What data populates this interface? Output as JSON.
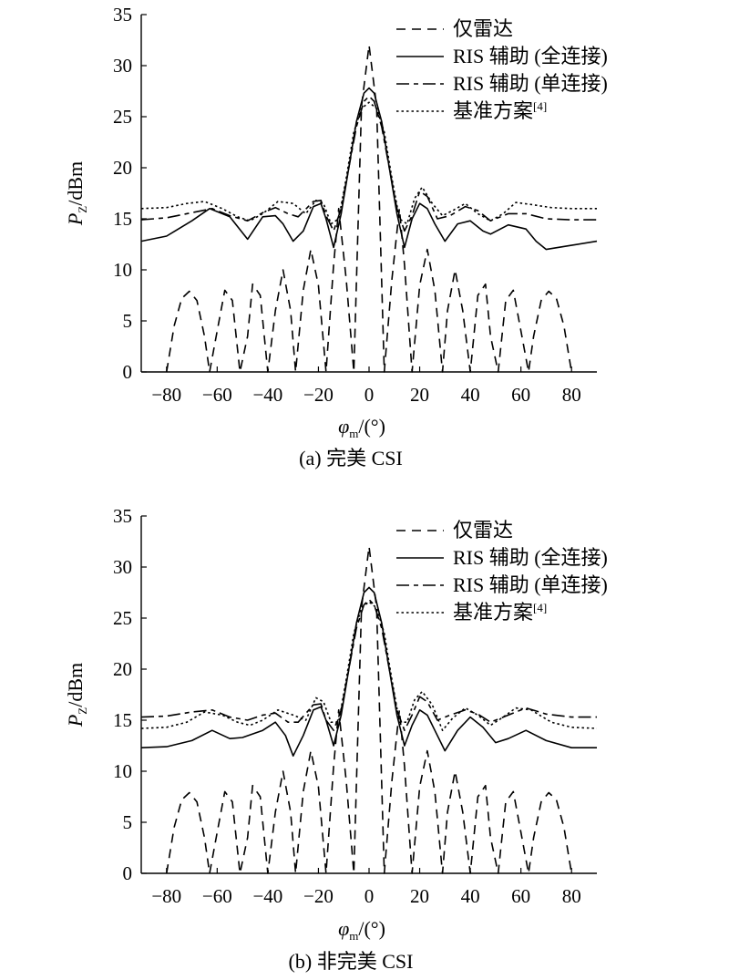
{
  "chart_data": [
    {
      "type": "line",
      "caption": "(a) 完美 CSI",
      "xlabel_main": "φ",
      "xlabel_sub": "m",
      "xlabel_tail": "/(°)",
      "ylabel_main": "P",
      "ylabel_sub": "Z",
      "ylabel_tail": "/dBm",
      "xlim": [
        -90,
        90
      ],
      "ylim": [
        0,
        35
      ],
      "xticks": [
        -80,
        -60,
        -40,
        -20,
        0,
        20,
        40,
        60,
        80
      ],
      "yticks": [
        0,
        5,
        10,
        15,
        20,
        25,
        30,
        35
      ],
      "grid": false,
      "legend_position": "top-right",
      "series": [
        {
          "name": "仅雷达",
          "style": "dashed",
          "x": [
            -80,
            -77,
            -74,
            -71,
            -68,
            -65,
            -63,
            -60,
            -57,
            -54,
            -51,
            -48,
            -46,
            -43,
            -40,
            -37,
            -34,
            -31,
            -29,
            -26,
            -23,
            -20,
            -17,
            -14,
            -12,
            -9,
            -6,
            -3,
            0,
            3,
            6,
            9,
            12,
            14,
            17,
            20,
            23,
            26,
            29,
            31,
            34,
            37,
            40,
            43,
            46,
            48,
            51,
            54,
            57,
            60,
            63,
            65,
            68,
            71,
            74,
            77,
            80
          ],
          "y": [
            0,
            4.5,
            7.2,
            7.9,
            7.0,
            3.5,
            0,
            4.0,
            8.0,
            7.0,
            0,
            3.5,
            8.6,
            7.5,
            0,
            6.0,
            10.0,
            6.0,
            0,
            8.0,
            12.0,
            8.5,
            0,
            10.5,
            16.0,
            9.0,
            0,
            26.0,
            32.0,
            26.0,
            0,
            9.0,
            16.0,
            10.5,
            0,
            8.5,
            12.0,
            8.0,
            0,
            6.0,
            10.0,
            6.0,
            0,
            7.5,
            8.6,
            3.5,
            0,
            7.0,
            8.0,
            4.0,
            0,
            3.5,
            7.0,
            7.9,
            7.2,
            4.5,
            0
          ]
        },
        {
          "name": "RIS 辅助 (全连接)",
          "style": "solid",
          "x": [
            -90,
            -80,
            -70,
            -63,
            -55,
            -48,
            -42,
            -37,
            -34,
            -30,
            -26,
            -22,
            -19,
            -17,
            -14,
            -11,
            -8,
            -5,
            -2,
            0,
            2,
            5,
            8,
            11,
            14,
            17,
            20,
            23,
            26,
            30,
            35,
            40,
            45,
            48,
            55,
            62,
            66,
            70,
            80,
            90
          ],
          "y": [
            12.8,
            13.3,
            14.8,
            16.0,
            15.2,
            13.0,
            15.2,
            15.3,
            14.5,
            12.8,
            13.8,
            16.2,
            16.5,
            15.0,
            12.2,
            15.5,
            20.0,
            24.5,
            27.3,
            27.8,
            27.3,
            24.5,
            20.0,
            15.5,
            12.2,
            15.0,
            16.5,
            16.0,
            14.5,
            12.8,
            14.5,
            14.8,
            13.8,
            13.5,
            14.4,
            14.0,
            12.8,
            12.0,
            12.4,
            12.8
          ]
        },
        {
          "name": "RIS 辅助 (单连接)",
          "style": "dashdot",
          "x": [
            -90,
            -80,
            -70,
            -62,
            -55,
            -48,
            -42,
            -37,
            -32,
            -28,
            -22,
            -19,
            -17,
            -14,
            -11,
            -8,
            -5,
            -2,
            0,
            2,
            5,
            8,
            11,
            14,
            17,
            20,
            23,
            27,
            32,
            38,
            43,
            48,
            55,
            62,
            70,
            80,
            90
          ],
          "y": [
            14.9,
            15.1,
            15.6,
            16.0,
            15.3,
            14.8,
            15.6,
            16.1,
            15.5,
            15.2,
            16.7,
            16.8,
            15.3,
            13.8,
            16.0,
            20.0,
            24.0,
            26.5,
            27.0,
            26.5,
            24.0,
            20.0,
            16.0,
            13.8,
            15.3,
            17.7,
            17.2,
            15.0,
            15.3,
            16.2,
            15.8,
            14.8,
            15.5,
            15.5,
            15.0,
            14.9,
            14.9
          ]
        },
        {
          "name": "基准方案[4]",
          "style": "dotted",
          "x": [
            -90,
            -80,
            -72,
            -65,
            -58,
            -52,
            -47,
            -42,
            -36,
            -30,
            -25,
            -21,
            -18,
            -15,
            -12,
            -9,
            -6,
            -3,
            0,
            3,
            6,
            9,
            12,
            15,
            18,
            21,
            25,
            29,
            33,
            38,
            43,
            48,
            53,
            58,
            64,
            72,
            80,
            90
          ],
          "y": [
            16.0,
            16.1,
            16.5,
            16.7,
            16.0,
            15.2,
            14.8,
            15.5,
            16.7,
            16.5,
            15.5,
            16.8,
            16.5,
            14.5,
            15.0,
            19.0,
            23.5,
            25.8,
            26.4,
            25.8,
            23.5,
            19.0,
            15.0,
            14.5,
            17.0,
            18.1,
            16.5,
            15.3,
            15.8,
            16.5,
            15.5,
            14.8,
            15.5,
            16.6,
            16.4,
            16.1,
            16.0,
            16.0
          ]
        }
      ]
    },
    {
      "type": "line",
      "caption": "(b) 非完美 CSI",
      "xlabel_main": "φ",
      "xlabel_sub": "m",
      "xlabel_tail": "/(°)",
      "ylabel_main": "P",
      "ylabel_sub": "Z",
      "ylabel_tail": "/dBm",
      "xlim": [
        -90,
        90
      ],
      "ylim": [
        0,
        35
      ],
      "xticks": [
        -80,
        -60,
        -40,
        -20,
        0,
        20,
        40,
        60,
        80
      ],
      "yticks": [
        0,
        5,
        10,
        15,
        20,
        25,
        30,
        35
      ],
      "grid": false,
      "legend_position": "top-right",
      "series": [
        {
          "name": "仅雷达",
          "style": "dashed",
          "x": [
            -80,
            -77,
            -74,
            -71,
            -68,
            -65,
            -63,
            -60,
            -57,
            -54,
            -51,
            -48,
            -46,
            -43,
            -40,
            -37,
            -34,
            -31,
            -29,
            -26,
            -23,
            -20,
            -17,
            -14,
            -12,
            -9,
            -6,
            -3,
            0,
            3,
            6,
            9,
            12,
            14,
            17,
            20,
            23,
            26,
            29,
            31,
            34,
            37,
            40,
            43,
            46,
            48,
            51,
            54,
            57,
            60,
            63,
            65,
            68,
            71,
            74,
            77,
            80
          ],
          "y": [
            0,
            4.5,
            7.2,
            7.9,
            7.0,
            3.5,
            0,
            4.0,
            8.0,
            7.0,
            0,
            3.5,
            8.6,
            7.5,
            0,
            6.0,
            10.0,
            6.0,
            0,
            8.0,
            12.0,
            8.5,
            0,
            10.5,
            16.0,
            9.0,
            0,
            26.0,
            32.0,
            26.0,
            0,
            9.0,
            16.0,
            10.5,
            0,
            8.5,
            12.0,
            8.0,
            0,
            6.0,
            10.0,
            6.0,
            0,
            7.5,
            8.6,
            3.5,
            0,
            7.0,
            8.0,
            4.0,
            0,
            3.5,
            7.0,
            7.9,
            7.2,
            4.5,
            0
          ]
        },
        {
          "name": "RIS 辅助 (全连接)",
          "style": "solid",
          "x": [
            -90,
            -80,
            -70,
            -62,
            -55,
            -50,
            -42,
            -37,
            -33,
            -30,
            -26,
            -22,
            -19,
            -17,
            -14,
            -11,
            -8,
            -5,
            -2,
            0,
            2,
            5,
            8,
            11,
            14,
            17,
            20,
            23,
            26,
            30,
            35,
            40,
            45,
            50,
            55,
            62,
            70,
            80,
            90
          ],
          "y": [
            12.3,
            12.4,
            13.0,
            14.0,
            13.2,
            13.3,
            14.0,
            14.8,
            13.5,
            11.5,
            13.5,
            16.0,
            16.3,
            15.0,
            12.5,
            15.5,
            20.0,
            24.5,
            27.5,
            28.0,
            27.5,
            24.5,
            20.0,
            15.5,
            12.5,
            14.5,
            16.0,
            15.5,
            14.0,
            12.0,
            14.0,
            15.3,
            14.3,
            12.8,
            13.2,
            14.0,
            13.0,
            12.3,
            12.3
          ]
        },
        {
          "name": "RIS 辅助 (单连接)",
          "style": "dashdot",
          "x": [
            -90,
            -80,
            -70,
            -62,
            -55,
            -48,
            -42,
            -37,
            -32,
            -28,
            -22,
            -19,
            -17,
            -14,
            -11,
            -8,
            -5,
            -2,
            0,
            2,
            5,
            8,
            11,
            14,
            17,
            20,
            23,
            27,
            32,
            38,
            43,
            48,
            55,
            62,
            70,
            80,
            90
          ],
          "y": [
            15.3,
            15.4,
            15.8,
            16.0,
            15.3,
            15.0,
            15.5,
            15.7,
            14.8,
            14.8,
            16.5,
            16.6,
            15.0,
            14.0,
            16.0,
            20.0,
            24.0,
            26.3,
            26.8,
            26.3,
            24.0,
            20.0,
            16.0,
            14.0,
            15.5,
            17.3,
            16.8,
            15.0,
            15.5,
            16.0,
            15.6,
            14.8,
            15.5,
            16.2,
            15.6,
            15.3,
            15.3
          ]
        },
        {
          "name": "基准方案[4]",
          "style": "dotted",
          "x": [
            -90,
            -80,
            -72,
            -65,
            -58,
            -52,
            -47,
            -42,
            -36,
            -30,
            -25,
            -21,
            -18,
            -15,
            -12,
            -9,
            -6,
            -3,
            0,
            3,
            6,
            9,
            12,
            15,
            18,
            21,
            25,
            29,
            33,
            38,
            43,
            48,
            53,
            58,
            64,
            72,
            80,
            90
          ],
          "y": [
            14.2,
            14.3,
            14.8,
            15.8,
            15.5,
            14.8,
            14.5,
            15.0,
            16.0,
            15.5,
            15.0,
            17.2,
            16.8,
            14.8,
            14.8,
            19.0,
            23.5,
            26.0,
            26.6,
            26.0,
            23.5,
            19.0,
            14.8,
            14.8,
            17.0,
            17.8,
            16.5,
            14.0,
            15.2,
            16.2,
            15.5,
            14.5,
            15.3,
            16.2,
            16.0,
            14.8,
            14.3,
            14.2
          ]
        }
      ]
    }
  ]
}
